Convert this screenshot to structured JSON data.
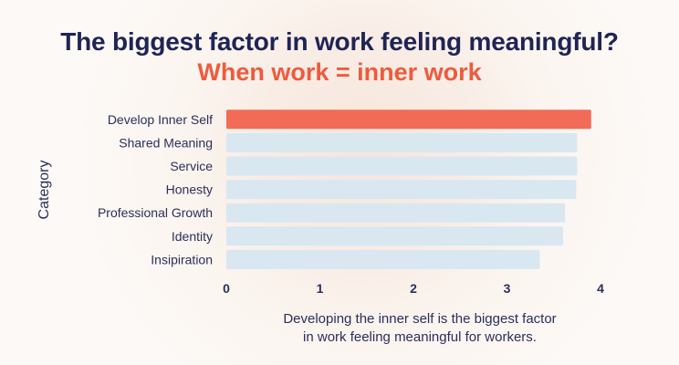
{
  "header": {
    "title": "The biggest factor in work feeling meaningful?",
    "subtitle": "When work = inner work"
  },
  "caption": {
    "line1": "Developing the inner self is the biggest factor",
    "line2": "in work feeling meaningful for workers."
  },
  "colors": {
    "highlight": "#f26b57",
    "bar": "#d9e7f1",
    "title": "#1f2454",
    "subtitle": "#ef5a3c",
    "text": "#2a2f5c"
  },
  "chart_data": {
    "type": "bar",
    "orientation": "horizontal",
    "categories": [
      "Develop Inner Self",
      "Shared Meaning",
      "Service",
      "Honesty",
      "Professional Growth",
      "Identity",
      "Insipiration"
    ],
    "values": [
      3.9,
      3.75,
      3.75,
      3.74,
      3.62,
      3.6,
      3.35
    ],
    "highlight_index": 0,
    "xlabel": "",
    "ylabel": "Category",
    "xlim": [
      0,
      4
    ],
    "xticks": [
      0,
      1,
      2,
      3,
      4
    ],
    "grid": false,
    "legend": "none"
  }
}
